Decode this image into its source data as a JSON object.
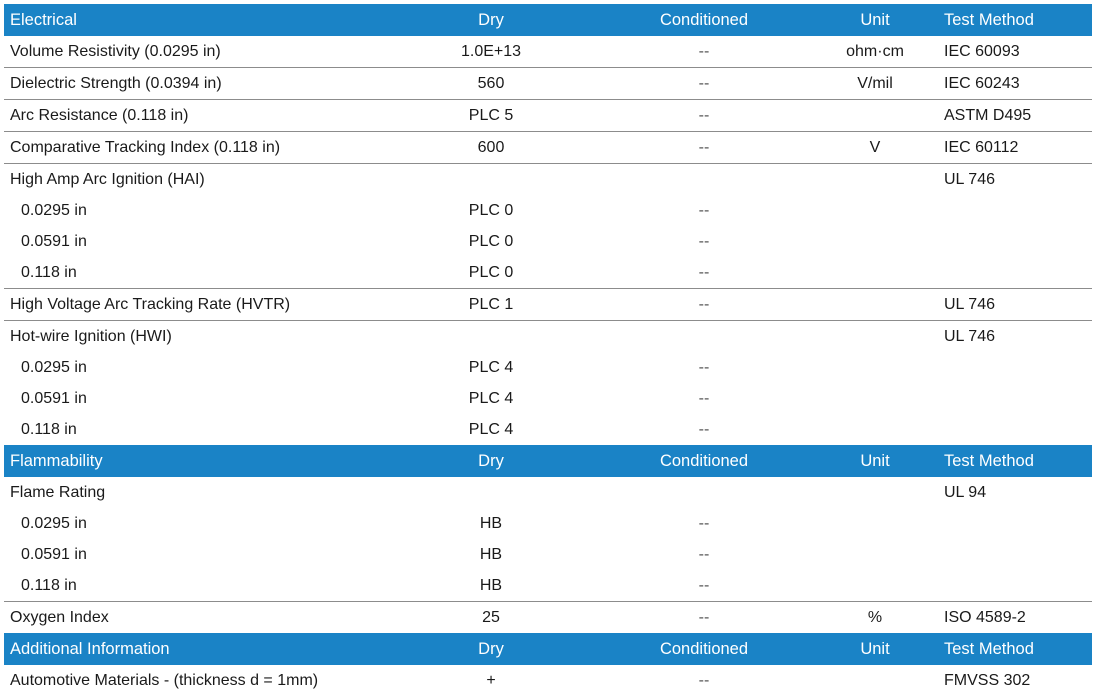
{
  "sections": [
    {
      "header": {
        "title": "Electrical",
        "dry": "Dry",
        "conditioned": "Conditioned",
        "unit": "Unit",
        "test": "Test Method"
      },
      "rows": [
        {
          "prop": "Volume Resistivity (0.0295 in)",
          "dry": "1.0E+13",
          "cond": "--",
          "unit": "ohm·cm",
          "test": "IEC 60093"
        },
        {
          "prop": "Dielectric Strength (0.0394 in)",
          "dry": "560",
          "cond": "--",
          "unit": "V/mil",
          "test": "IEC 60243"
        },
        {
          "prop": "Arc Resistance (0.118 in)",
          "dry": "PLC 5",
          "cond": "--",
          "unit": "",
          "test": "ASTM D495"
        },
        {
          "prop": "Comparative Tracking Index (0.118 in)",
          "dry": "600",
          "cond": "--",
          "unit": "V",
          "test": "IEC 60112"
        },
        {
          "prop": "High Amp Arc Ignition (HAI)",
          "dry": "",
          "cond": "",
          "unit": "",
          "test": "UL 746"
        },
        {
          "prop": "0.0295 in",
          "dry": "PLC 0",
          "cond": "--",
          "unit": "",
          "test": ""
        },
        {
          "prop": "0.0591 in",
          "dry": "PLC 0",
          "cond": "--",
          "unit": "",
          "test": ""
        },
        {
          "prop": "0.118 in",
          "dry": "PLC 0",
          "cond": "--",
          "unit": "",
          "test": ""
        },
        {
          "prop": "High Voltage Arc Tracking Rate (HVTR)",
          "dry": "PLC 1",
          "cond": "--",
          "unit": "",
          "test": "UL 746"
        },
        {
          "prop": "Hot-wire Ignition (HWI)",
          "dry": "",
          "cond": "",
          "unit": "",
          "test": "UL 746"
        },
        {
          "prop": "0.0295 in",
          "dry": "PLC 4",
          "cond": "--",
          "unit": "",
          "test": ""
        },
        {
          "prop": "0.0591 in",
          "dry": "PLC 4",
          "cond": "--",
          "unit": "",
          "test": ""
        },
        {
          "prop": "0.118 in",
          "dry": "PLC 4",
          "cond": "--",
          "unit": "",
          "test": ""
        }
      ]
    },
    {
      "header": {
        "title": "Flammability",
        "dry": "Dry",
        "conditioned": "Conditioned",
        "unit": "Unit",
        "test": "Test Method"
      },
      "rows": [
        {
          "prop": "Flame Rating",
          "dry": "",
          "cond": "",
          "unit": "",
          "test": "UL 94"
        },
        {
          "prop": "0.0295 in",
          "dry": "HB",
          "cond": "--",
          "unit": "",
          "test": ""
        },
        {
          "prop": "0.0591 in",
          "dry": "HB",
          "cond": "--",
          "unit": "",
          "test": ""
        },
        {
          "prop": "0.118 in",
          "dry": "HB",
          "cond": "--",
          "unit": "",
          "test": ""
        },
        {
          "prop": "Oxygen Index",
          "dry": "25",
          "cond": "--",
          "unit": "%",
          "test": "ISO 4589-2"
        }
      ]
    },
    {
      "header": {
        "title": "Additional Information",
        "dry": "Dry",
        "conditioned": "Conditioned",
        "unit": "Unit",
        "test": "Test Method"
      },
      "rows": [
        {
          "prop": "Automotive Materials - (thickness d = 1mm)",
          "dry": "+",
          "cond": "--",
          "unit": "",
          "test": "FMVSS 302"
        }
      ]
    }
  ]
}
